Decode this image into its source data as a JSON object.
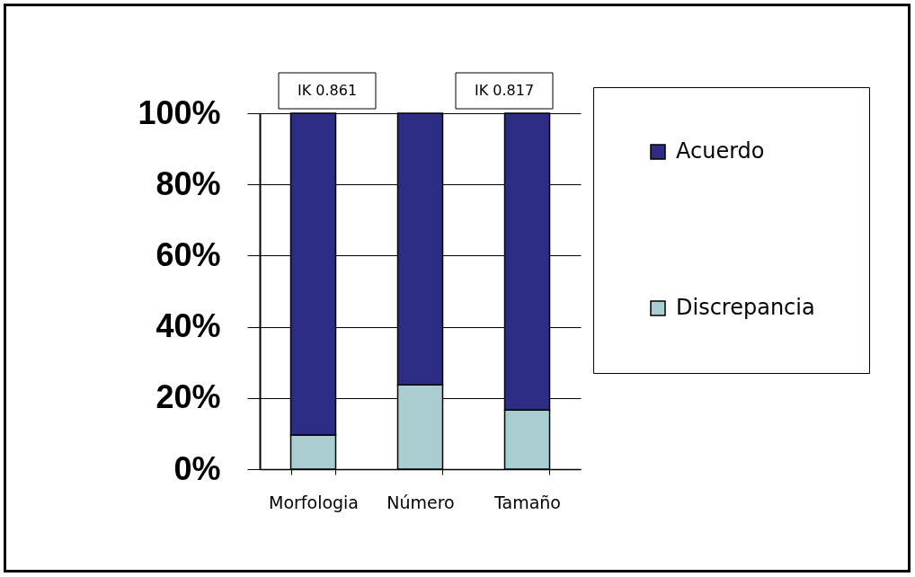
{
  "chart_data": {
    "type": "bar",
    "categories": [
      "Morfologia",
      "Número",
      "Tamaño"
    ],
    "series": [
      {
        "name": "Discrepancia",
        "color": "#a9cdd0",
        "values": [
          9.6,
          23.7,
          16.6
        ]
      },
      {
        "name": "Acuerdo",
        "color": "#2d2d86",
        "values": [
          90.4,
          76.3,
          83.4
        ]
      }
    ],
    "stacked": true,
    "ylim": [
      0,
      100
    ],
    "yticks": [
      {
        "value": 0,
        "label": "0%"
      },
      {
        "value": 20,
        "label": "20%"
      },
      {
        "value": 40,
        "label": "40%"
      },
      {
        "value": 60,
        "label": "60%"
      },
      {
        "value": 80,
        "label": "80%"
      },
      {
        "value": 100,
        "label": "100%"
      }
    ],
    "grid": "y",
    "legend": "top right",
    "annotations": [
      "IK 0.861",
      "IK 0.817"
    ]
  }
}
